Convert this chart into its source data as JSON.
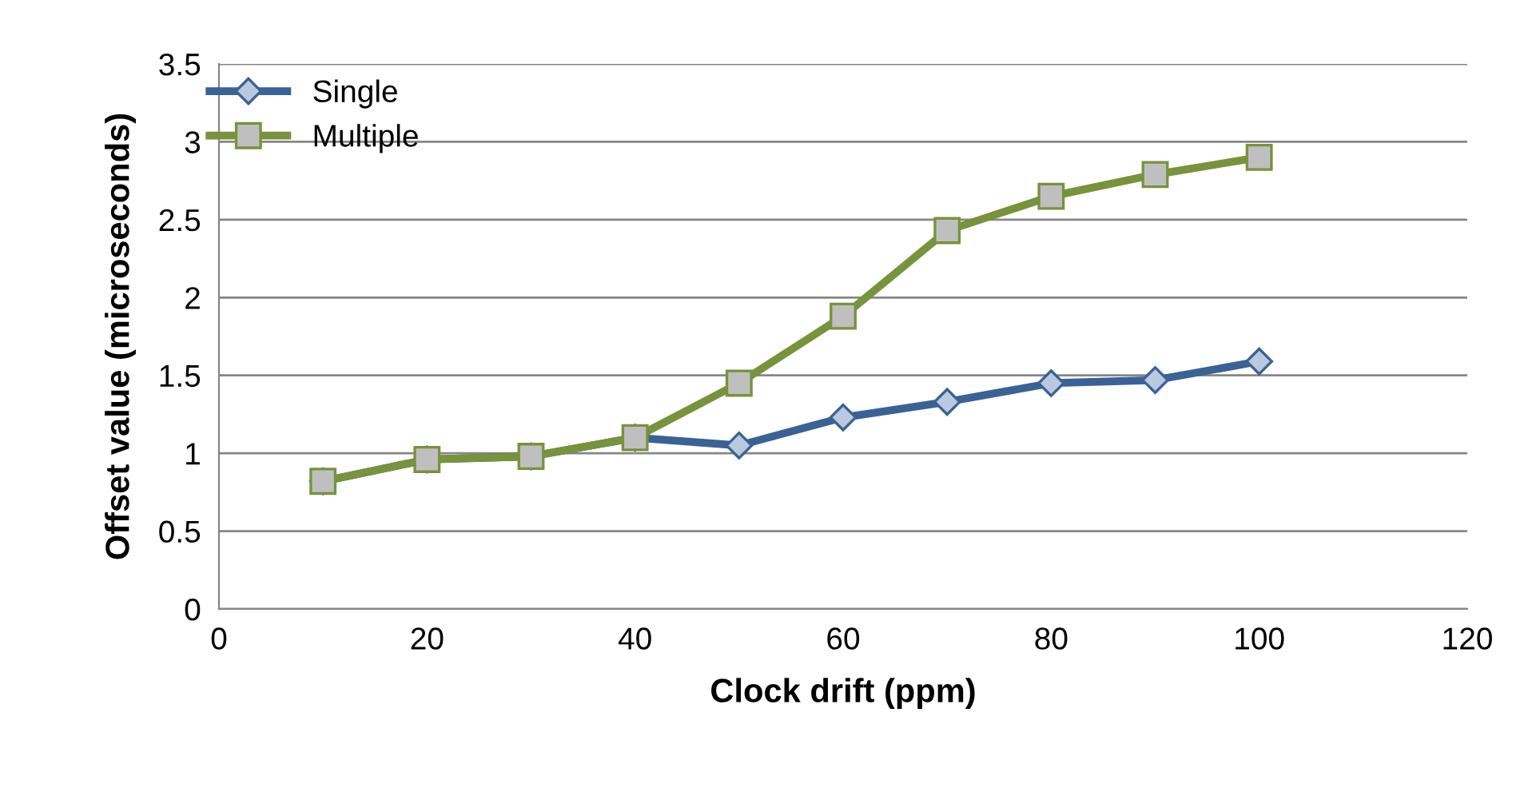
{
  "chart_data": {
    "type": "line",
    "xlabel": "Clock drift (ppm)",
    "ylabel": "Offset value (microseconds)",
    "x": [
      10,
      20,
      30,
      40,
      50,
      60,
      70,
      80,
      90,
      100
    ],
    "series": [
      {
        "name": "Single",
        "color": "#3b6296",
        "marker": "diamond",
        "values": [
          0.82,
          0.96,
          0.98,
          1.1,
          1.05,
          1.23,
          1.33,
          1.45,
          1.47,
          1.59
        ]
      },
      {
        "name": "Multiple",
        "color": "#77933c",
        "marker": "square",
        "values": [
          0.82,
          0.96,
          0.98,
          1.1,
          1.45,
          1.88,
          2.43,
          2.65,
          2.79,
          2.9
        ]
      }
    ],
    "xlim": [
      0,
      120
    ],
    "xticks": [
      0,
      20,
      40,
      60,
      80,
      100,
      120
    ],
    "ylim": [
      0,
      3.5
    ],
    "yticks": [
      0,
      0.5,
      1,
      1.5,
      2,
      2.5,
      3,
      3.5
    ],
    "grid": "y",
    "legend": "top left",
    "line_style": "solid"
  }
}
